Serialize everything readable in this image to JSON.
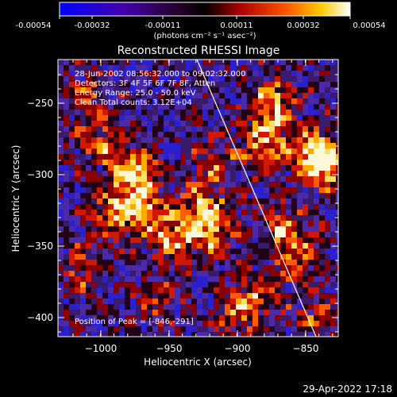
{
  "colorbar": {
    "tick_labels": [
      "-0.00054",
      "-0.00032",
      "-0.00011",
      "0.00011",
      "0.00032",
      "0.00054"
    ],
    "units": "(photons cm⁻² s⁻¹ asec⁻²)"
  },
  "plot": {
    "title": "Reconstructed RHESSI Image",
    "xlabel": "Heliocentric X (arcsec)",
    "ylabel": "Heliocentric Y (arcsec)",
    "x_ticks": [
      "−1000",
      "−950",
      "−900",
      "−850"
    ],
    "y_ticks": [
      "−250",
      "−300",
      "−350",
      "−400"
    ]
  },
  "annotations": {
    "time_range": "28-Jun-2002 08:56:32.000 to 09:02:32.000",
    "detectors": "Detectors: 3F 4F 5F 6F 7F 8F, Atten",
    "energy": "Energy Range: 25.0 - 50.0 keV",
    "clean": "Clean     Total counts: 3.12E+04",
    "peak": "Position of Peak = [-846,-291]"
  },
  "footer": {
    "timestamp": "29-Apr-2022 17:18"
  },
  "image_stats": {
    "colormap": "rhessi-blue-black-red-yellow-white",
    "value_min": -0.00054,
    "value_max": 0.00054
  }
}
